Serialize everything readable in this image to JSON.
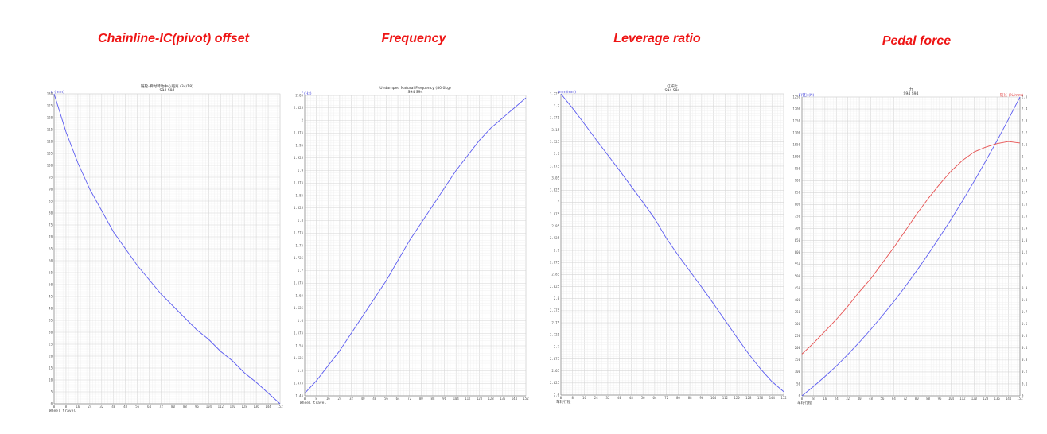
{
  "chart_data": [
    {
      "type": "line",
      "title": "Chainline-IC(pivot) offset",
      "subtitle": [
        "链轮-瞬时转动中心距离 (34/18)",
        "S94 S94"
      ],
      "xlabel": "Wheel travel",
      "ylabel": "d (mm)",
      "xlim": [
        0,
        152
      ],
      "ylim": [
        0,
        130
      ],
      "grid": true,
      "xticks": [
        0,
        8,
        16,
        24,
        32,
        40,
        48,
        56,
        64,
        72,
        80,
        88,
        96,
        104,
        112,
        120,
        128,
        136,
        144,
        152
      ],
      "yticks": [
        0,
        5,
        10,
        15,
        20,
        25,
        30,
        35,
        40,
        45,
        50,
        55,
        60,
        65,
        70,
        75,
        80,
        85,
        90,
        95,
        100,
        105,
        110,
        115,
        120,
        125,
        130
      ],
      "series": [
        {
          "axis": "left",
          "color": "#5b5bf0",
          "x": [
            0,
            8,
            16,
            24,
            32,
            40,
            48,
            56,
            64,
            72,
            80,
            88,
            96,
            104,
            112,
            120,
            128,
            136,
            144,
            152
          ],
          "y": [
            130,
            114,
            101,
            90,
            81,
            72,
            65,
            58,
            52,
            46,
            41,
            36,
            31,
            27,
            22,
            18,
            13,
            9,
            4.5,
            0
          ]
        }
      ]
    },
    {
      "type": "line",
      "title": "Frequency",
      "subtitle": [
        "Undamped Natural Frequency (80.0kg)",
        "S94 S94"
      ],
      "xlabel": "Wheel travel",
      "ylabel": "f (Hz)",
      "xlim": [
        0,
        152
      ],
      "ylim": [
        1.45,
        2.05
      ],
      "grid": true,
      "xticks": [
        0,
        8,
        16,
        24,
        32,
        40,
        48,
        56,
        64,
        72,
        80,
        88,
        96,
        104,
        112,
        120,
        128,
        136,
        144,
        152
      ],
      "yticks": [
        1.45,
        1.475,
        1.5,
        1.525,
        1.55,
        1.575,
        1.6,
        1.625,
        1.65,
        1.675,
        1.7,
        1.725,
        1.75,
        1.775,
        1.8,
        1.825,
        1.85,
        1.875,
        1.9,
        1.925,
        1.95,
        1.975,
        2,
        2.025,
        2.05
      ],
      "series": [
        {
          "axis": "left",
          "color": "#5b5bf0",
          "x": [
            0,
            8,
            16,
            24,
            32,
            40,
            48,
            56,
            64,
            72,
            80,
            88,
            96,
            104,
            112,
            120,
            128,
            136,
            144,
            152
          ],
          "y": [
            1.455,
            1.48,
            1.51,
            1.54,
            1.575,
            1.61,
            1.645,
            1.68,
            1.72,
            1.76,
            1.795,
            1.83,
            1.865,
            1.9,
            1.93,
            1.96,
            1.985,
            2.005,
            2.025,
            2.045
          ]
        }
      ]
    },
    {
      "type": "line",
      "title": "Leverage ratio",
      "subtitle": [
        "杠杆比",
        "S94 S94"
      ],
      "xlabel": "车轮行程",
      "ylabel": "(mm/mm)",
      "xlim": [
        0,
        152
      ],
      "ylim": [
        2.6,
        3.225
      ],
      "grid": true,
      "xticks": [
        0,
        8,
        16,
        24,
        32,
        40,
        48,
        56,
        64,
        72,
        80,
        88,
        96,
        104,
        112,
        120,
        128,
        136,
        144,
        152
      ],
      "yticks": [
        2.6,
        2.625,
        2.65,
        2.675,
        2.7,
        2.725,
        2.75,
        2.775,
        2.8,
        2.825,
        2.85,
        2.875,
        2.9,
        2.925,
        2.95,
        2.975,
        3,
        3.025,
        3.05,
        3.075,
        3.1,
        3.125,
        3.15,
        3.175,
        3.2,
        3.225
      ],
      "series": [
        {
          "axis": "left",
          "color": "#5b5bf0",
          "x": [
            0,
            8,
            16,
            24,
            32,
            40,
            48,
            56,
            64,
            72,
            80,
            88,
            96,
            104,
            112,
            120,
            128,
            136,
            144,
            152
          ],
          "y": [
            3.225,
            3.195,
            3.163,
            3.13,
            3.098,
            3.066,
            3.033,
            3.0,
            2.966,
            2.925,
            2.89,
            2.857,
            2.824,
            2.79,
            2.755,
            2.72,
            2.686,
            2.655,
            2.628,
            2.607
          ]
        }
      ]
    },
    {
      "type": "line",
      "title": "Pedal force",
      "subtitle": [
        "力",
        "S94 S94"
      ],
      "xlabel": "车轮行程",
      "ylabel": "F(链) (N)",
      "y2label": "链长 (%/mm)",
      "xlim": [
        0,
        152
      ],
      "ylim": [
        0,
        1250
      ],
      "y2lim": [
        0,
        2.5
      ],
      "grid": true,
      "xticks": [
        0,
        8,
        16,
        24,
        32,
        40,
        48,
        56,
        64,
        72,
        80,
        88,
        96,
        104,
        112,
        120,
        128,
        136,
        144,
        152
      ],
      "yticks": [
        0,
        50,
        100,
        150,
        200,
        250,
        300,
        350,
        400,
        450,
        500,
        550,
        600,
        650,
        700,
        750,
        800,
        850,
        900,
        950,
        1000,
        1050,
        1100,
        1150,
        1200,
        1250
      ],
      "y2ticks": [
        0,
        0.1,
        0.2,
        0.3,
        0.4,
        0.5,
        0.6,
        0.7,
        0.8,
        0.9,
        1,
        1.1,
        1.2,
        1.3,
        1.4,
        1.5,
        1.6,
        1.7,
        1.8,
        1.9,
        2,
        2.1,
        2.2,
        2.3,
        2.4,
        2.5
      ],
      "series": [
        {
          "axis": "left",
          "color": "#5b5bf0",
          "x": [
            0,
            8,
            16,
            24,
            32,
            40,
            48,
            56,
            64,
            72,
            80,
            88,
            96,
            104,
            112,
            120,
            128,
            136,
            144,
            152
          ],
          "y": [
            0,
            39,
            81,
            125,
            173,
            224,
            278,
            335,
            394,
            457,
            523,
            592,
            664,
            738,
            816,
            897,
            981,
            1067,
            1157,
            1250
          ]
        },
        {
          "axis": "right",
          "color": "#e65050",
          "x": [
            0,
            8,
            16,
            24,
            32,
            40,
            48,
            56,
            64,
            72,
            80,
            88,
            96,
            104,
            112,
            120,
            128,
            136,
            144,
            152
          ],
          "y": [
            0.35,
            0.44,
            0.54,
            0.64,
            0.75,
            0.87,
            0.98,
            1.11,
            1.24,
            1.38,
            1.52,
            1.65,
            1.77,
            1.88,
            1.97,
            2.04,
            2.08,
            2.11,
            2.127,
            2.115
          ]
        }
      ],
      "label_colors": {
        "left": "#3a3ad8",
        "right": "#e03030"
      }
    }
  ]
}
